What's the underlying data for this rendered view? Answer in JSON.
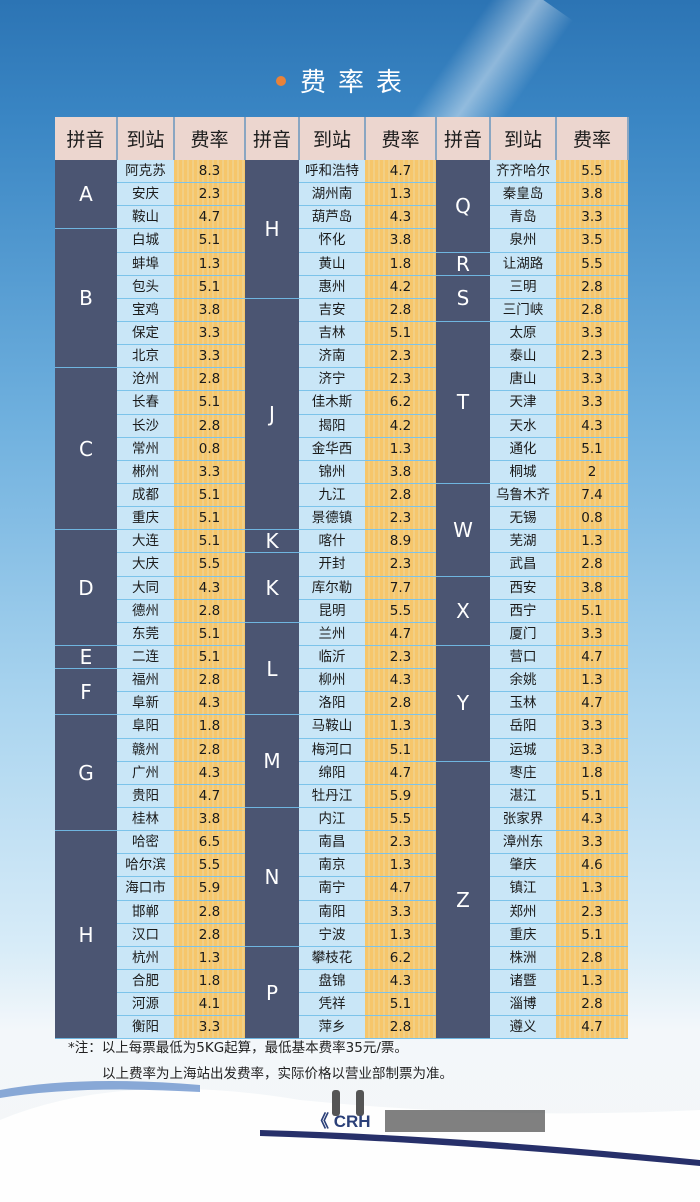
{
  "title": "费率表",
  "headers": [
    "拼音",
    "到站",
    "费率"
  ],
  "columns": [
    [
      {
        "letter": "A",
        "rows": [
          [
            "阿克苏",
            "8.3"
          ],
          [
            "安庆",
            "2.3"
          ],
          [
            "鞍山",
            "4.7"
          ]
        ]
      },
      {
        "letter": "B",
        "rows": [
          [
            "白城",
            "5.1"
          ],
          [
            "蚌埠",
            "1.3"
          ],
          [
            "包头",
            "5.1"
          ],
          [
            "宝鸡",
            "3.8"
          ],
          [
            "保定",
            "3.3"
          ],
          [
            "北京",
            "3.3"
          ]
        ]
      },
      {
        "letter": "C",
        "rows": [
          [
            "沧州",
            "2.8"
          ],
          [
            "长春",
            "5.1"
          ],
          [
            "长沙",
            "2.8"
          ],
          [
            "常州",
            "0.8"
          ],
          [
            "郴州",
            "3.3"
          ],
          [
            "成都",
            "5.1"
          ],
          [
            "重庆",
            "5.1"
          ]
        ]
      },
      {
        "letter": "D",
        "rows": [
          [
            "大连",
            "5.1"
          ],
          [
            "大庆",
            "5.5"
          ],
          [
            "大同",
            "4.3"
          ],
          [
            "德州",
            "2.8"
          ],
          [
            "东莞",
            "5.1"
          ]
        ]
      },
      {
        "letter": "E",
        "rows": [
          [
            "二连",
            "5.1"
          ]
        ]
      },
      {
        "letter": "F",
        "rows": [
          [
            "福州",
            "2.8"
          ],
          [
            "阜新",
            "4.3"
          ]
        ]
      },
      {
        "letter": "G",
        "rows": [
          [
            "阜阳",
            "1.8"
          ],
          [
            "赣州",
            "2.8"
          ],
          [
            "广州",
            "4.3"
          ],
          [
            "贵阳",
            "4.7"
          ],
          [
            "桂林",
            "3.8"
          ]
        ]
      },
      {
        "letter": "H",
        "rows": [
          [
            "哈密",
            "6.5"
          ],
          [
            "哈尔滨",
            "5.5"
          ],
          [
            "海口市",
            "5.9"
          ],
          [
            "邯郸",
            "2.8"
          ],
          [
            "汉口",
            "2.8"
          ],
          [
            "杭州",
            "1.3"
          ],
          [
            "合肥",
            "1.8"
          ],
          [
            "河源",
            "4.1"
          ],
          [
            "衡阳",
            "3.3"
          ]
        ]
      }
    ],
    [
      {
        "letter": "H",
        "rows": [
          [
            "呼和浩特",
            "4.7"
          ],
          [
            "湖州南",
            "1.3"
          ],
          [
            "葫芦岛",
            "4.3"
          ],
          [
            "怀化",
            "3.8"
          ],
          [
            "黄山",
            "1.8"
          ],
          [
            "惠州",
            "4.2"
          ]
        ]
      },
      {
        "letter": "J",
        "rows": [
          [
            "吉安",
            "2.8"
          ],
          [
            "吉林",
            "5.1"
          ],
          [
            "济南",
            "2.3"
          ],
          [
            "济宁",
            "2.3"
          ],
          [
            "佳木斯",
            "6.2"
          ],
          [
            "揭阳",
            "4.2"
          ],
          [
            "金华西",
            "1.3"
          ],
          [
            "锦州",
            "3.8"
          ],
          [
            "九江",
            "2.8"
          ],
          [
            "景德镇",
            "2.3"
          ]
        ]
      },
      {
        "letter": "K",
        "rows": [
          [
            "喀什",
            "8.9"
          ]
        ]
      },
      {
        "letter": "K",
        "rows": [
          [
            "开封",
            "2.3"
          ],
          [
            "库尔勒",
            "7.7"
          ],
          [
            "昆明",
            "5.5"
          ]
        ]
      },
      {
        "letter": "L",
        "rows": [
          [
            "兰州",
            "4.7"
          ],
          [
            "临沂",
            "2.3"
          ],
          [
            "柳州",
            "4.3"
          ],
          [
            "洛阳",
            "2.8"
          ]
        ]
      },
      {
        "letter": "M",
        "rows": [
          [
            "马鞍山",
            "1.3"
          ],
          [
            "梅河口",
            "5.1"
          ],
          [
            "绵阳",
            "4.7"
          ],
          [
            "牡丹江",
            "5.9"
          ]
        ]
      },
      {
        "letter": "N",
        "rows": [
          [
            "内江",
            "5.5"
          ],
          [
            "南昌",
            "2.3"
          ],
          [
            "南京",
            "1.3"
          ],
          [
            "南宁",
            "4.7"
          ],
          [
            "南阳",
            "3.3"
          ],
          [
            "宁波",
            "1.3"
          ]
        ]
      },
      {
        "letter": "P",
        "rows": [
          [
            "攀枝花",
            "6.2"
          ],
          [
            "盘锦",
            "4.3"
          ],
          [
            "凭祥",
            "5.1"
          ],
          [
            "萍乡",
            "2.8"
          ]
        ]
      }
    ],
    [
      {
        "letter": "Q",
        "rows": [
          [
            "齐齐哈尔",
            "5.5"
          ],
          [
            "秦皇岛",
            "3.8"
          ],
          [
            "青岛",
            "3.3"
          ],
          [
            "泉州",
            "3.5"
          ]
        ]
      },
      {
        "letter": "R",
        "rows": [
          [
            "让湖路",
            "5.5"
          ]
        ]
      },
      {
        "letter": "S",
        "rows": [
          [
            "三明",
            "2.8"
          ],
          [
            "三门峡",
            "2.8"
          ]
        ]
      },
      {
        "letter": "T",
        "rows": [
          [
            "太原",
            "3.3"
          ],
          [
            "泰山",
            "2.3"
          ],
          [
            "唐山",
            "3.3"
          ],
          [
            "天津",
            "3.3"
          ],
          [
            "天水",
            "4.3"
          ],
          [
            "通化",
            "5.1"
          ],
          [
            "桐城",
            "2"
          ]
        ]
      },
      {
        "letter": "W",
        "rows": [
          [
            "乌鲁木齐",
            "7.4"
          ],
          [
            "无锡",
            "0.8"
          ],
          [
            "芜湖",
            "1.3"
          ],
          [
            "武昌",
            "2.8"
          ]
        ]
      },
      {
        "letter": "X",
        "rows": [
          [
            "西安",
            "3.8"
          ],
          [
            "西宁",
            "5.1"
          ],
          [
            "厦门",
            "3.3"
          ]
        ]
      },
      {
        "letter": "Y",
        "rows": [
          [
            "营口",
            "4.7"
          ],
          [
            "余姚",
            "1.3"
          ],
          [
            "玉林",
            "4.7"
          ],
          [
            "岳阳",
            "3.3"
          ],
          [
            "运城",
            "3.3"
          ]
        ]
      },
      {
        "letter": "Z",
        "rows": [
          [
            "枣庄",
            "1.8"
          ],
          [
            "湛江",
            "5.1"
          ],
          [
            "张家界",
            "4.3"
          ],
          [
            "漳州东",
            "3.3"
          ],
          [
            "肇庆",
            "4.6"
          ],
          [
            "镇江",
            "1.3"
          ],
          [
            "郑州",
            "2.3"
          ],
          [
            "重庆",
            "5.1"
          ],
          [
            "株洲",
            "2.8"
          ],
          [
            "诸暨",
            "1.3"
          ],
          [
            "淄博",
            "2.8"
          ],
          [
            "遵义",
            "4.7"
          ]
        ]
      }
    ]
  ],
  "note": {
    "line1": "*注：以上每票最低为5KG起算，最低基本费率35元/票。",
    "line2": "以上费率为上海站出发费率，实际价格以营业部制票为准。"
  },
  "logo": "CRH",
  "colors": {
    "pinyin_bg": "#4b5572",
    "station_bg": "#c9e6f7",
    "rate_bg": "#f6c66b",
    "header_bg": "#ecd6cf",
    "bullet": "#e8823a"
  }
}
